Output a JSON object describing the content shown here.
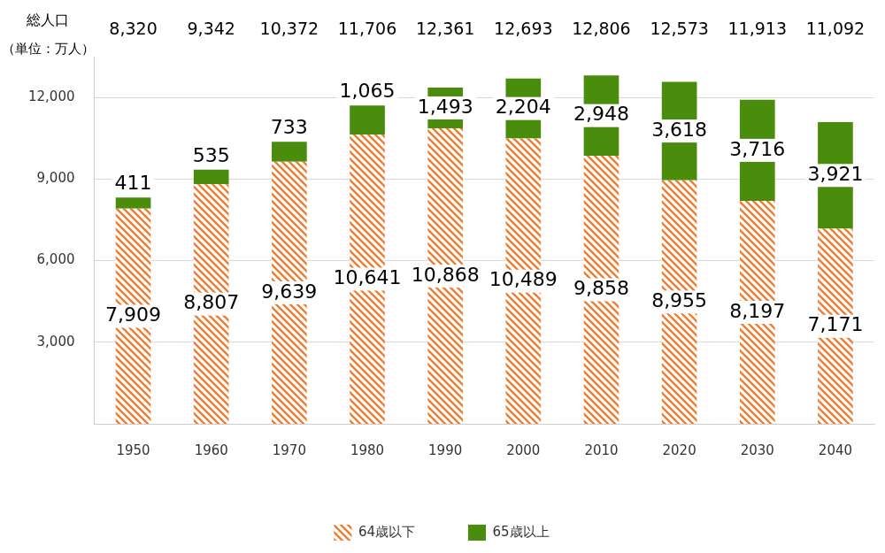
{
  "chart_data": {
    "type": "bar",
    "title": "総人口",
    "subtitle": "（単位：万人）",
    "categories": [
      "1950",
      "1960",
      "1970",
      "1980",
      "1990",
      "2000",
      "2010",
      "2020",
      "2030",
      "2040"
    ],
    "totals": [
      8320,
      9342,
      10372,
      11706,
      12361,
      12693,
      12806,
      12573,
      11913,
      11092
    ],
    "total_labels": [
      "8,320",
      "9,342",
      "10,372",
      "11,706",
      "12,361",
      "12,693",
      "12,806",
      "12,573",
      "11,913",
      "11,092"
    ],
    "series": [
      {
        "name": "64歳以下",
        "color": "#ED7D31",
        "values": [
          7909,
          8807,
          9639,
          10641,
          10868,
          10489,
          9858,
          8955,
          8197,
          7171
        ],
        "value_labels": [
          "7,909",
          "8,807",
          "9,639",
          "10,641",
          "10,868",
          "10,489",
          "9,858",
          "8,955",
          "8,197",
          "7,171"
        ]
      },
      {
        "name": "65歳以上",
        "color": "#4A8C0C",
        "values": [
          411,
          535,
          733,
          1065,
          1493,
          2204,
          2948,
          3618,
          3716,
          3921
        ],
        "value_labels": [
          "411",
          "535",
          "733",
          "1,065",
          "1,493",
          "2,204",
          "2,948",
          "3,618",
          "3,716",
          "3,921"
        ]
      }
    ],
    "ylim": [
      0,
      13500
    ],
    "yticks": [
      {
        "value": 3000,
        "label": "3,000"
      },
      {
        "value": 6000,
        "label": "6,000"
      },
      {
        "value": 9000,
        "label": "9,000"
      },
      {
        "value": 12000,
        "label": "12,000"
      }
    ],
    "stacked": true,
    "data_labels": true,
    "grid": true,
    "legend": "bottom"
  }
}
